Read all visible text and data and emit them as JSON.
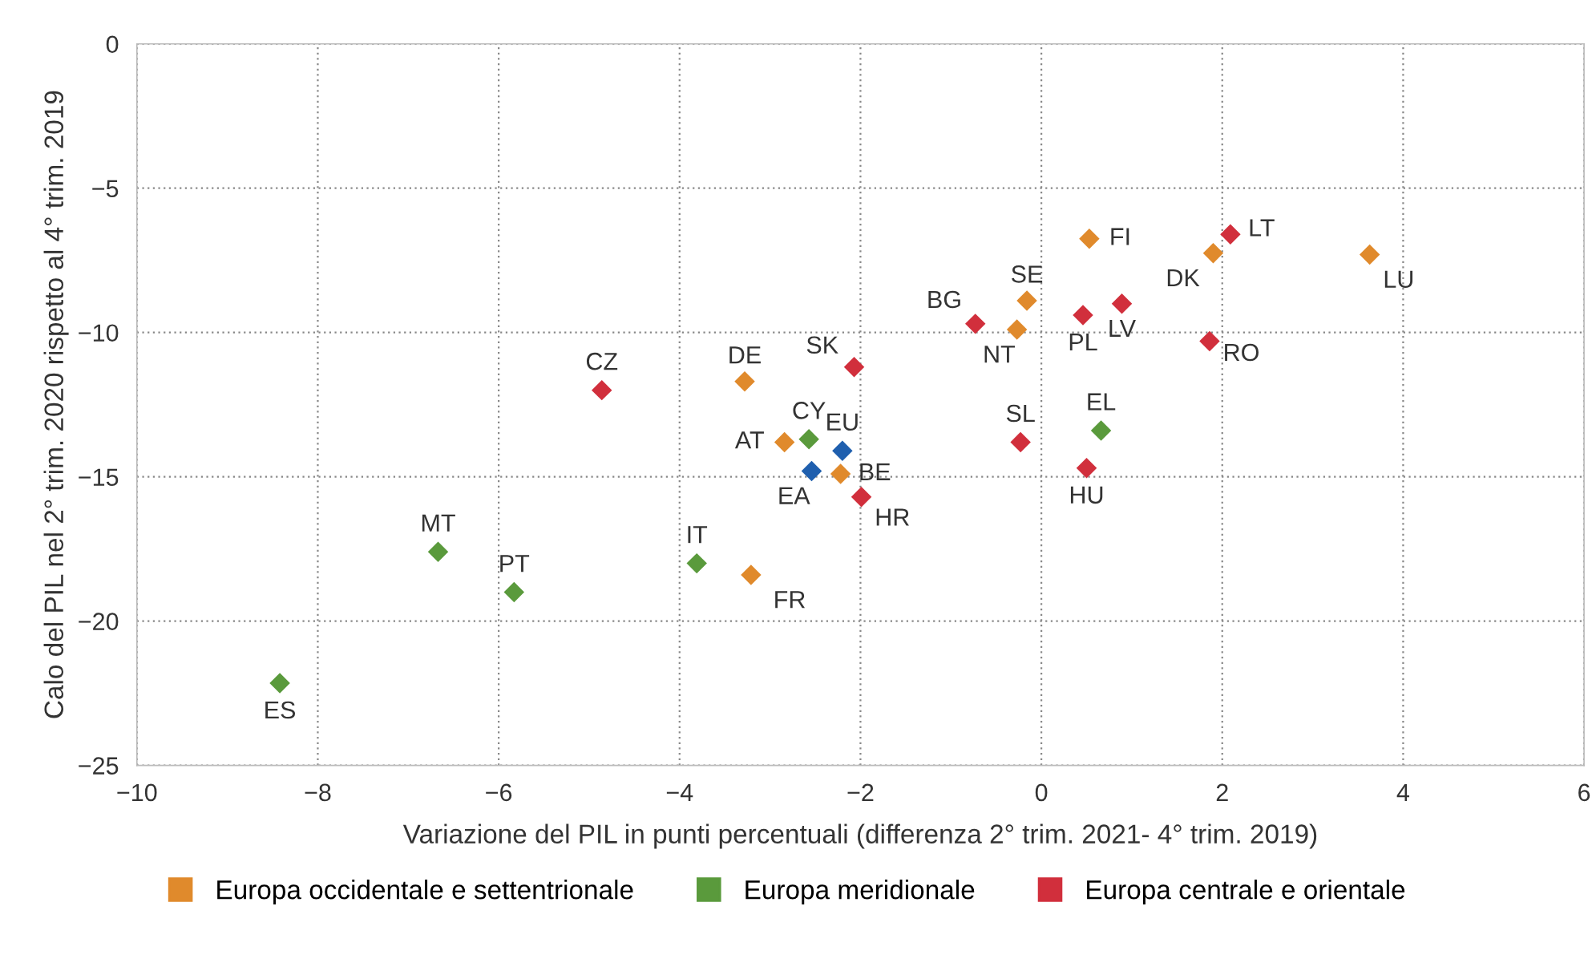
{
  "chart_data": {
    "type": "scatter",
    "xlabel": "Variazione del PIL in punti percentuali (differenza 2° trim. 2021- 4° trim. 2019)",
    "ylabel": "Calo del PIL nel 2° trim. 2020 rispetto al 4° trim. 2019",
    "xlim": [
      -10,
      6
    ],
    "xticks": [
      -10,
      -8,
      -6,
      -4,
      -2,
      0,
      2,
      4,
      6
    ],
    "ylim": [
      -25,
      0
    ],
    "yticks": [
      -25,
      -20,
      -15,
      -10,
      -5,
      0
    ],
    "grid": true,
    "legend": "bottom",
    "marker": "diamond",
    "series": [
      {
        "name": "Europa occidentale e settentrionale",
        "color": "#e08a2c",
        "x": [
          -3.21,
          -3.28,
          -2.84,
          -2.22,
          -0.16,
          -0.27,
          0.53,
          1.9,
          3.63
        ],
        "values": [
          -18.4,
          -11.7,
          -13.8,
          -14.9,
          -8.9,
          -9.9,
          -6.75,
          -7.25,
          -7.3
        ]
      },
      {
        "name": "Europa meridionale",
        "color": "#5a9a3c",
        "x": [
          -8.42,
          -6.67,
          -5.83,
          -3.81,
          -2.57,
          0.66
        ],
        "values": [
          -22.15,
          -17.6,
          -19.0,
          -18.0,
          -13.7,
          -13.4
        ]
      },
      {
        "name": "Europa centrale e orientale",
        "color": "#d12f3c",
        "x": [
          -4.86,
          -2.07,
          -1.99,
          -0.73,
          -0.23,
          0.46,
          0.89,
          0.5,
          2.09,
          1.86
        ],
        "values": [
          -12.0,
          -11.2,
          -15.7,
          -9.7,
          -13.8,
          -9.4,
          -9.0,
          -14.7,
          -6.6,
          -10.3
        ]
      },
      {
        "color": "#1f5fae",
        "x": [
          -2.54,
          -2.2
        ],
        "values": [
          -14.8,
          -14.1
        ]
      }
    ],
    "annotations": [
      {
        "text": "FR",
        "x": -3.21,
        "y": -18.4
      },
      {
        "text": "DE",
        "x": -3.28,
        "y": -11.7
      },
      {
        "text": "AT",
        "x": -2.84,
        "y": -13.8
      },
      {
        "text": "BE",
        "x": -2.22,
        "y": -14.9
      },
      {
        "text": "SE",
        "x": -0.16,
        "y": -8.9
      },
      {
        "text": "NT",
        "x": -0.27,
        "y": -9.9
      },
      {
        "text": "FI",
        "x": 0.53,
        "y": -6.75
      },
      {
        "text": "DK",
        "x": 1.9,
        "y": -7.25
      },
      {
        "text": "LU",
        "x": 3.63,
        "y": -7.3
      },
      {
        "text": "ES",
        "x": -8.42,
        "y": -22.15
      },
      {
        "text": "MT",
        "x": -6.67,
        "y": -17.6
      },
      {
        "text": "PT",
        "x": -5.83,
        "y": -19.0
      },
      {
        "text": "IT",
        "x": -3.81,
        "y": -18.0
      },
      {
        "text": "CY",
        "x": -2.57,
        "y": -13.7
      },
      {
        "text": "EL",
        "x": 0.66,
        "y": -13.4
      },
      {
        "text": "CZ",
        "x": -4.86,
        "y": -12.0
      },
      {
        "text": "SK",
        "x": -2.07,
        "y": -11.2
      },
      {
        "text": "HR",
        "x": -1.99,
        "y": -15.7
      },
      {
        "text": "BG",
        "x": -0.73,
        "y": -9.7
      },
      {
        "text": "SL",
        "x": -0.23,
        "y": -13.8
      },
      {
        "text": "PL",
        "x": 0.46,
        "y": -9.4
      },
      {
        "text": "LV",
        "x": 0.89,
        "y": -9.0
      },
      {
        "text": "HU",
        "x": 0.5,
        "y": -14.7
      },
      {
        "text": "LT",
        "x": 2.09,
        "y": -6.6
      },
      {
        "text": "RO",
        "x": 1.86,
        "y": -10.3
      },
      {
        "text": "EA",
        "x": -2.54,
        "y": -14.8
      },
      {
        "text": "EU",
        "x": -2.2,
        "y": -14.1
      }
    ]
  }
}
